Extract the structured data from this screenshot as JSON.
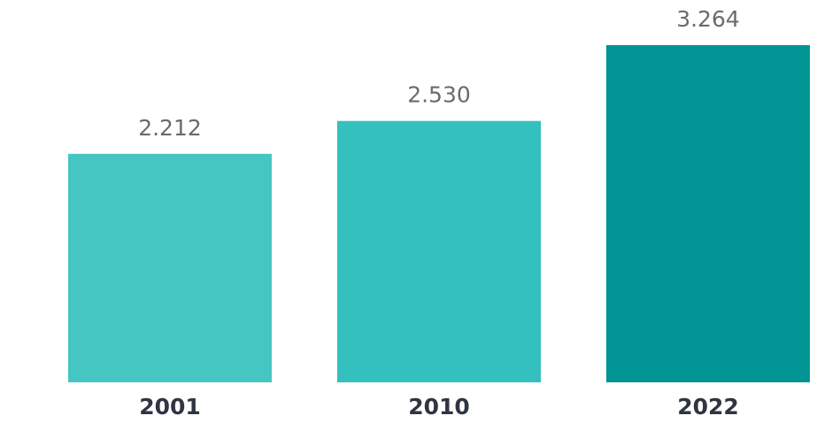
{
  "chart_data": {
    "type": "bar",
    "categories": [
      "2001",
      "2010",
      "2022"
    ],
    "values": [
      2212,
      2530,
      3264
    ],
    "value_labels": [
      "2.212",
      "2.530",
      "3.264"
    ],
    "colors": [
      "#45c6c3",
      "#33c0bf",
      "#009494"
    ]
  }
}
